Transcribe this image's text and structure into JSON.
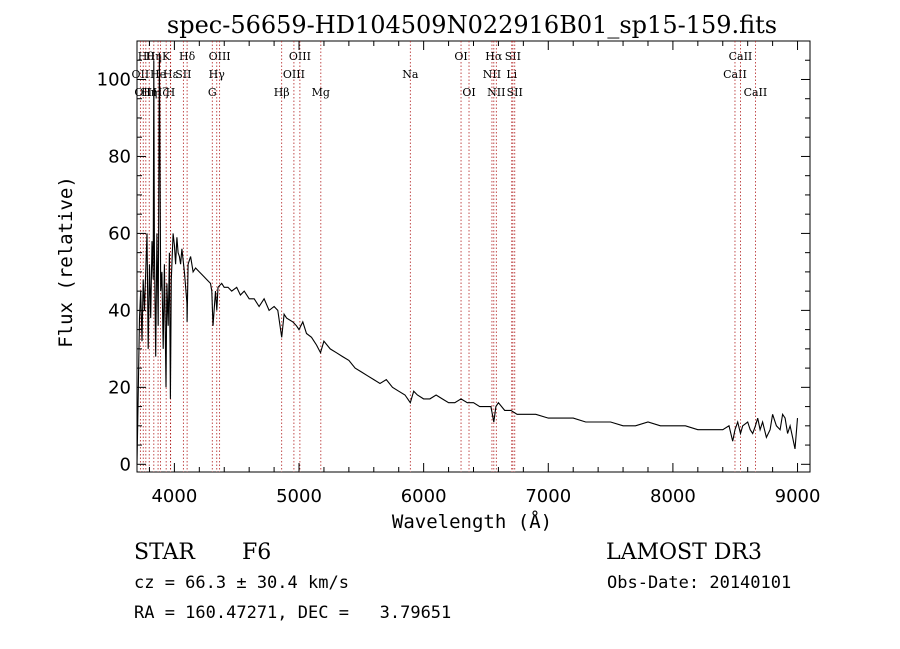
{
  "chart_data": {
    "type": "line",
    "title": "spec-56659-HD104509N022916B01_sp15-159.fits",
    "xlabel": "Wavelength (Å)",
    "ylabel": "Flux (relative)",
    "xlim": [
      3700,
      9100
    ],
    "ylim": [
      -2,
      110
    ],
    "xticks": [
      4000,
      5000,
      6000,
      7000,
      8000,
      9000
    ],
    "yticks": [
      0,
      20,
      40,
      60,
      80,
      100
    ],
    "grid": false,
    "series": [
      {
        "name": "spectrum",
        "x": [
          3700,
          3710,
          3720,
          3730,
          3740,
          3750,
          3760,
          3770,
          3780,
          3790,
          3800,
          3810,
          3820,
          3830,
          3835,
          3840,
          3850,
          3860,
          3870,
          3880,
          3890,
          3900,
          3910,
          3920,
          3933,
          3940,
          3950,
          3960,
          3968,
          3975,
          3990,
          4000,
          4010,
          4020,
          4030,
          4040,
          4050,
          4060,
          4080,
          4100,
          4102,
          4110,
          4130,
          4150,
          4170,
          4200,
          4230,
          4260,
          4290,
          4300,
          4310,
          4330,
          4340,
          4350,
          4380,
          4400,
          4430,
          4460,
          4500,
          4530,
          4560,
          4600,
          4640,
          4680,
          4720,
          4760,
          4800,
          4830,
          4861,
          4880,
          4900,
          4950,
          4980,
          5000,
          5030,
          5060,
          5100,
          5140,
          5172,
          5200,
          5250,
          5300,
          5350,
          5400,
          5450,
          5500,
          5550,
          5600,
          5650,
          5700,
          5750,
          5800,
          5850,
          5893,
          5920,
          5950,
          6000,
          6050,
          6100,
          6150,
          6200,
          6250,
          6300,
          6350,
          6400,
          6450,
          6500,
          6540,
          6563,
          6580,
          6600,
          6650,
          6700,
          6750,
          6800,
          6900,
          7000,
          7100,
          7200,
          7300,
          7400,
          7500,
          7600,
          7700,
          7800,
          7900,
          8000,
          8100,
          8200,
          8300,
          8400,
          8450,
          8480,
          8498,
          8520,
          8542,
          8560,
          8600,
          8620,
          8640,
          8662,
          8680,
          8700,
          8720,
          8750,
          8780,
          8800,
          8830,
          8860,
          8880,
          8900,
          8920,
          8940,
          8960,
          8980,
          9000
        ],
        "values": [
          0,
          18,
          38,
          45,
          32,
          48,
          40,
          50,
          60,
          30,
          52,
          38,
          58,
          48,
          105,
          56,
          28,
          60,
          36,
          107,
          45,
          50,
          30,
          52,
          20,
          47,
          36,
          55,
          17,
          48,
          60,
          57,
          52,
          59,
          55,
          54,
          52,
          56,
          50,
          42,
          37,
          52,
          54,
          50,
          51,
          50,
          49,
          48,
          47,
          45,
          36,
          45,
          40,
          46,
          47,
          46,
          46,
          45,
          46,
          44,
          45,
          43,
          43,
          41,
          43,
          40,
          41,
          40,
          33,
          39,
          38,
          37,
          36,
          35,
          37,
          34,
          33,
          31,
          29,
          32,
          30,
          29,
          28,
          27,
          25,
          24,
          23,
          22,
          21,
          22,
          20,
          19,
          18,
          16,
          19,
          18,
          17,
          17,
          18,
          17,
          16,
          16,
          17,
          16,
          16,
          15,
          15,
          15,
          11,
          15,
          16,
          14,
          14,
          13,
          13,
          13,
          12,
          12,
          12,
          11,
          11,
          11,
          10,
          10,
          11,
          10,
          10,
          10,
          9,
          9,
          9,
          10,
          6,
          9,
          11,
          8,
          10,
          11,
          9,
          8,
          10,
          12,
          9,
          11,
          7,
          9,
          13,
          10,
          9,
          13,
          12,
          8,
          10,
          7,
          4,
          12
        ],
        "color": "#000000"
      }
    ],
    "line_markers": [
      {
        "wavelength": 3727,
        "label": "OII",
        "row": 1
      },
      {
        "wavelength": 3750,
        "label": "OII",
        "row": 2
      },
      {
        "wavelength": 3771,
        "label": "Hθ",
        "row": 0
      },
      {
        "wavelength": 3798,
        "label": "Hη",
        "row": 2
      },
      {
        "wavelength": 3835,
        "label": "Hη",
        "row": 0
      },
      {
        "wavelength": 3869,
        "label": "He",
        "row": 1
      },
      {
        "wavelength": 3889,
        "label": "Hζ",
        "row": 2
      },
      {
        "wavelength": 3934,
        "label": "K",
        "row": 0
      },
      {
        "wavelength": 3970,
        "label": "Hε",
        "row": 1
      },
      {
        "wavelength": 3968,
        "label": "H",
        "row": 2
      },
      {
        "wavelength": 4072,
        "label": "SII",
        "row": 1
      },
      {
        "wavelength": 4102,
        "label": "Hδ",
        "row": 0
      },
      {
        "wavelength": 4304,
        "label": "G",
        "row": 2
      },
      {
        "wavelength": 4340,
        "label": "Hγ",
        "row": 1
      },
      {
        "wavelength": 4363,
        "label": "OIII",
        "row": 0
      },
      {
        "wavelength": 4861,
        "label": "Hβ",
        "row": 2
      },
      {
        "wavelength": 4959,
        "label": "OIII",
        "row": 1
      },
      {
        "wavelength": 5007,
        "label": "OIII",
        "row": 0
      },
      {
        "wavelength": 5175,
        "label": "Mg",
        "row": 2
      },
      {
        "wavelength": 5893,
        "label": "Na",
        "row": 1
      },
      {
        "wavelength": 6300,
        "label": "OI",
        "row": 0
      },
      {
        "wavelength": 6364,
        "label": "OI",
        "row": 2
      },
      {
        "wavelength": 6548,
        "label": "NII",
        "row": 1
      },
      {
        "wavelength": 6563,
        "label": "Hα",
        "row": 0
      },
      {
        "wavelength": 6583,
        "label": "NII",
        "row": 2
      },
      {
        "wavelength": 6707,
        "label": "Li",
        "row": 1
      },
      {
        "wavelength": 6716,
        "label": "SII",
        "row": 0
      },
      {
        "wavelength": 6731,
        "label": "SII",
        "row": 2
      },
      {
        "wavelength": 8498,
        "label": "CaII",
        "row": 1
      },
      {
        "wavelength": 8542,
        "label": "CaII",
        "row": 0
      },
      {
        "wavelength": 8662,
        "label": "CaII",
        "row": 2
      }
    ],
    "marker_color": "#b22222"
  },
  "info": {
    "object_class": "STAR",
    "subclass": "F6",
    "survey": "LAMOST DR3",
    "redshift": "cz = 66.3 ± 30.4 km/s",
    "obs_date": "Obs-Date: 20140101",
    "coords": "RA = 160.47271, DEC =   3.79651"
  }
}
